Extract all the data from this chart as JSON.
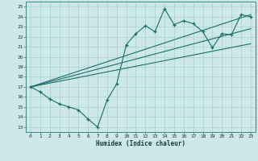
{
  "title": "",
  "xlabel": "Humidex (Indice chaleur)",
  "bg_color": "#cce8e8",
  "line_color": "#1a6e6a",
  "grid_color": "#aacfcf",
  "xmin": 0,
  "xmax": 23,
  "ymin": 13,
  "ymax": 25,
  "main_x": [
    0,
    1,
    2,
    3,
    4,
    5,
    6,
    7,
    8,
    9,
    10,
    11,
    12,
    13,
    14,
    15,
    16,
    17,
    18,
    19,
    20,
    21,
    22,
    23
  ],
  "main_y": [
    17.0,
    16.5,
    15.8,
    15.3,
    15.0,
    14.7,
    13.8,
    13.0,
    15.7,
    17.3,
    21.2,
    22.3,
    23.1,
    22.5,
    24.8,
    23.2,
    23.6,
    23.3,
    22.5,
    20.9,
    22.3,
    22.2,
    24.2,
    24.0
  ],
  "line1_x": [
    0,
    23
  ],
  "line1_y": [
    17.0,
    24.2
  ],
  "line2_x": [
    0,
    23
  ],
  "line2_y": [
    17.0,
    22.8
  ],
  "line3_x": [
    0,
    23
  ],
  "line3_y": [
    17.0,
    21.3
  ],
  "xtick_labels": [
    "0",
    "1",
    "2",
    "3",
    "4",
    "5",
    "6",
    "7",
    "8",
    "9",
    "10",
    "11",
    "12",
    "13",
    "14",
    "15",
    "16",
    "17",
    "18",
    "19",
    "20",
    "21",
    "22",
    "23"
  ],
  "ytick_labels": [
    "13",
    "14",
    "15",
    "16",
    "17",
    "18",
    "19",
    "20",
    "21",
    "22",
    "23",
    "24",
    "25"
  ]
}
